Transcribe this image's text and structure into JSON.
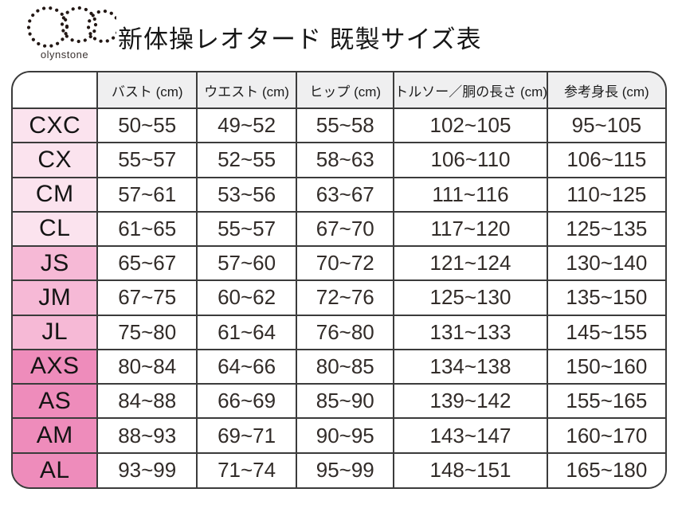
{
  "logo": {
    "text": "olynstone"
  },
  "title": "新体操レオタード 既製サイズ表",
  "colors": {
    "border": "#3b3b3b",
    "header_bg": "#efeff0",
    "group_child_pink": "#fbe3ee",
    "group_junior_pink": "#f6b9d6",
    "group_adult_pink": "#ee8cbb"
  },
  "chart_data": {
    "type": "table",
    "title": "新体操レオタード 既製サイズ表",
    "corner_label": "",
    "columns": [
      "バスト (cm)",
      "ウエスト (cm)",
      "ヒップ (cm)",
      "トルソー／胴の長さ (cm)",
      "参考身長 (cm)"
    ],
    "rows": [
      [
        "CXC",
        "50~55",
        "49~52",
        "55~58",
        "102~105",
        "95~105"
      ],
      [
        "CX",
        "55~57",
        "52~55",
        "58~63",
        "106~110",
        "106~115"
      ],
      [
        "CM",
        "57~61",
        "53~56",
        "63~67",
        "111~116",
        "110~125"
      ],
      [
        "CL",
        "61~65",
        "55~57",
        "67~70",
        "117~120",
        "125~135"
      ],
      [
        "JS",
        "65~67",
        "57~60",
        "70~72",
        "121~124",
        "130~140"
      ],
      [
        "JM",
        "67~75",
        "60~62",
        "72~76",
        "125~130",
        "135~150"
      ],
      [
        "JL",
        "75~80",
        "61~64",
        "76~80",
        "131~133",
        "145~155"
      ],
      [
        "AXS",
        "80~84",
        "64~66",
        "80~85",
        "134~138",
        "150~160"
      ],
      [
        "AS",
        "84~88",
        "66~69",
        "85~90",
        "139~142",
        "155~165"
      ],
      [
        "AM",
        "88~93",
        "69~71",
        "90~95",
        "143~147",
        "160~170"
      ],
      [
        "AL",
        "93~99",
        "71~74",
        "95~99",
        "148~151",
        "165~180"
      ]
    ],
    "row_groups": [
      "child",
      "child",
      "child",
      "child",
      "junior",
      "junior",
      "junior",
      "adult",
      "adult",
      "adult",
      "adult"
    ],
    "group_colors": {
      "child": "#fbe3ee",
      "junior": "#f6b9d6",
      "adult": "#ee8cbb"
    },
    "column_widths_pct": [
      13.0,
      15.2,
      15.3,
      14.9,
      23.5,
      18.1
    ]
  }
}
